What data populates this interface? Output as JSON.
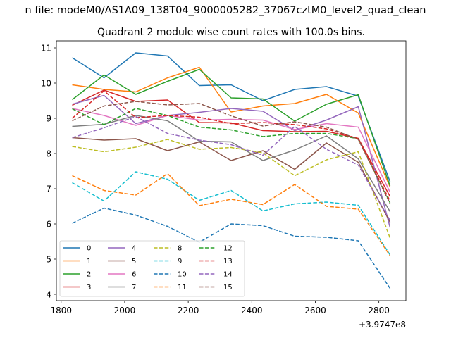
{
  "figure": {
    "suptitle": "n file: modeM0/AS1A09_138T04_9000005282_37067cztM0_level2_quad_clean",
    "offset_text": "+3.9747e8"
  },
  "chart_data": {
    "type": "line",
    "title": "Quadrant 2 module wise count rates with 100.0s bins.",
    "xlabel": "",
    "ylabel": "",
    "x_offset": 397470000,
    "xlim": [
      1785,
      2885
    ],
    "ylim": [
      3.82,
      11.2
    ],
    "x_ticks": [
      1800,
      2000,
      2200,
      2400,
      2600,
      2800
    ],
    "x_tick_labels": [
      "1800",
      "2000",
      "2200",
      "2400",
      "2600",
      "2800"
    ],
    "y_ticks": [
      4,
      5,
      6,
      7,
      8,
      9,
      10,
      11
    ],
    "y_tick_labels": [
      "4",
      "5",
      "6",
      "7",
      "8",
      "9",
      "10",
      "11"
    ],
    "grid": false,
    "legend": {
      "placement": "lower-left",
      "columns": 4
    },
    "x": [
      1835,
      1935,
      2035,
      2135,
      2235,
      2335,
      2435,
      2535,
      2635,
      2735,
      2835
    ],
    "series": [
      {
        "name": "0",
        "color": "#1f77b4",
        "dash": "solid",
        "values": [
          10.72,
          10.15,
          10.86,
          10.77,
          9.93,
          9.95,
          9.5,
          9.82,
          9.9,
          9.63,
          7.2
        ]
      },
      {
        "name": "1",
        "color": "#ff7f0e",
        "dash": "solid",
        "values": [
          9.95,
          9.82,
          9.75,
          10.15,
          10.45,
          9.18,
          9.35,
          9.42,
          9.68,
          9.15,
          7.05
        ]
      },
      {
        "name": "2",
        "color": "#2ca02c",
        "dash": "solid",
        "values": [
          9.53,
          10.23,
          9.68,
          10.05,
          10.39,
          9.58,
          9.55,
          8.92,
          9.4,
          9.67,
          7.08
        ]
      },
      {
        "name": "3",
        "color": "#d62728",
        "dash": "solid",
        "values": [
          9.37,
          9.8,
          9.48,
          9.52,
          8.88,
          8.87,
          8.65,
          8.62,
          8.63,
          8.43,
          6.78
        ]
      },
      {
        "name": "4",
        "color": "#9467bd",
        "dash": "solid",
        "values": [
          9.4,
          9.65,
          8.85,
          9.08,
          9.17,
          9.28,
          9.2,
          8.65,
          8.95,
          9.33,
          5.9
        ]
      },
      {
        "name": "5",
        "color": "#8c564b",
        "dash": "solid",
        "values": [
          8.45,
          8.38,
          8.42,
          8.08,
          8.33,
          7.8,
          8.08,
          7.55,
          8.3,
          7.75,
          6.05
        ]
      },
      {
        "name": "6",
        "color": "#e377c2",
        "dash": "solid",
        "values": [
          9.28,
          9.08,
          8.8,
          9.08,
          8.95,
          8.97,
          8.95,
          8.68,
          8.85,
          8.75,
          6.9
        ]
      },
      {
        "name": "7",
        "color": "#7f7f7f",
        "dash": "solid",
        "values": [
          8.77,
          8.83,
          9.08,
          8.93,
          8.35,
          8.33,
          7.8,
          8.1,
          8.5,
          7.85,
          6.35
        ]
      },
      {
        "name": "8",
        "color": "#bcbd22",
        "dash": "dashed",
        "values": [
          8.2,
          8.05,
          8.18,
          8.4,
          8.12,
          8.17,
          8.02,
          7.37,
          7.82,
          8.05,
          5.6
        ]
      },
      {
        "name": "9",
        "color": "#17becf",
        "dash": "dashed",
        "values": [
          7.17,
          6.65,
          7.48,
          7.27,
          6.67,
          6.95,
          6.37,
          6.57,
          6.62,
          6.53,
          5.12
        ]
      },
      {
        "name": "10",
        "color": "#1f77b4",
        "dash": "dashed",
        "values": [
          6.02,
          6.45,
          6.25,
          5.93,
          5.48,
          6.0,
          5.95,
          5.65,
          5.62,
          5.52,
          4.17
        ]
      },
      {
        "name": "11",
        "color": "#ff7f0e",
        "dash": "dashed",
        "values": [
          7.37,
          6.95,
          6.82,
          7.43,
          6.52,
          6.7,
          6.55,
          7.12,
          6.5,
          6.42,
          5.1
        ]
      },
      {
        "name": "12",
        "color": "#2ca02c",
        "dash": "dashed",
        "values": [
          9.27,
          8.82,
          9.28,
          9.08,
          8.75,
          8.67,
          8.48,
          8.57,
          8.57,
          8.42,
          6.6
        ]
      },
      {
        "name": "13",
        "color": "#d62728",
        "dash": "dashed",
        "values": [
          9.0,
          9.78,
          9.02,
          9.08,
          9.03,
          8.85,
          8.88,
          8.82,
          8.7,
          8.42,
          6.65
        ]
      },
      {
        "name": "14",
        "color": "#9467bd",
        "dash": "dashed",
        "values": [
          8.45,
          8.73,
          9.05,
          8.57,
          8.38,
          8.25,
          7.95,
          8.77,
          8.12,
          7.67,
          6.1
        ]
      },
      {
        "name": "15",
        "color": "#8c564b",
        "dash": "dashed",
        "values": [
          8.93,
          9.35,
          9.48,
          9.38,
          9.42,
          9.07,
          8.78,
          8.9,
          8.75,
          8.4,
          6.58
        ]
      }
    ]
  }
}
